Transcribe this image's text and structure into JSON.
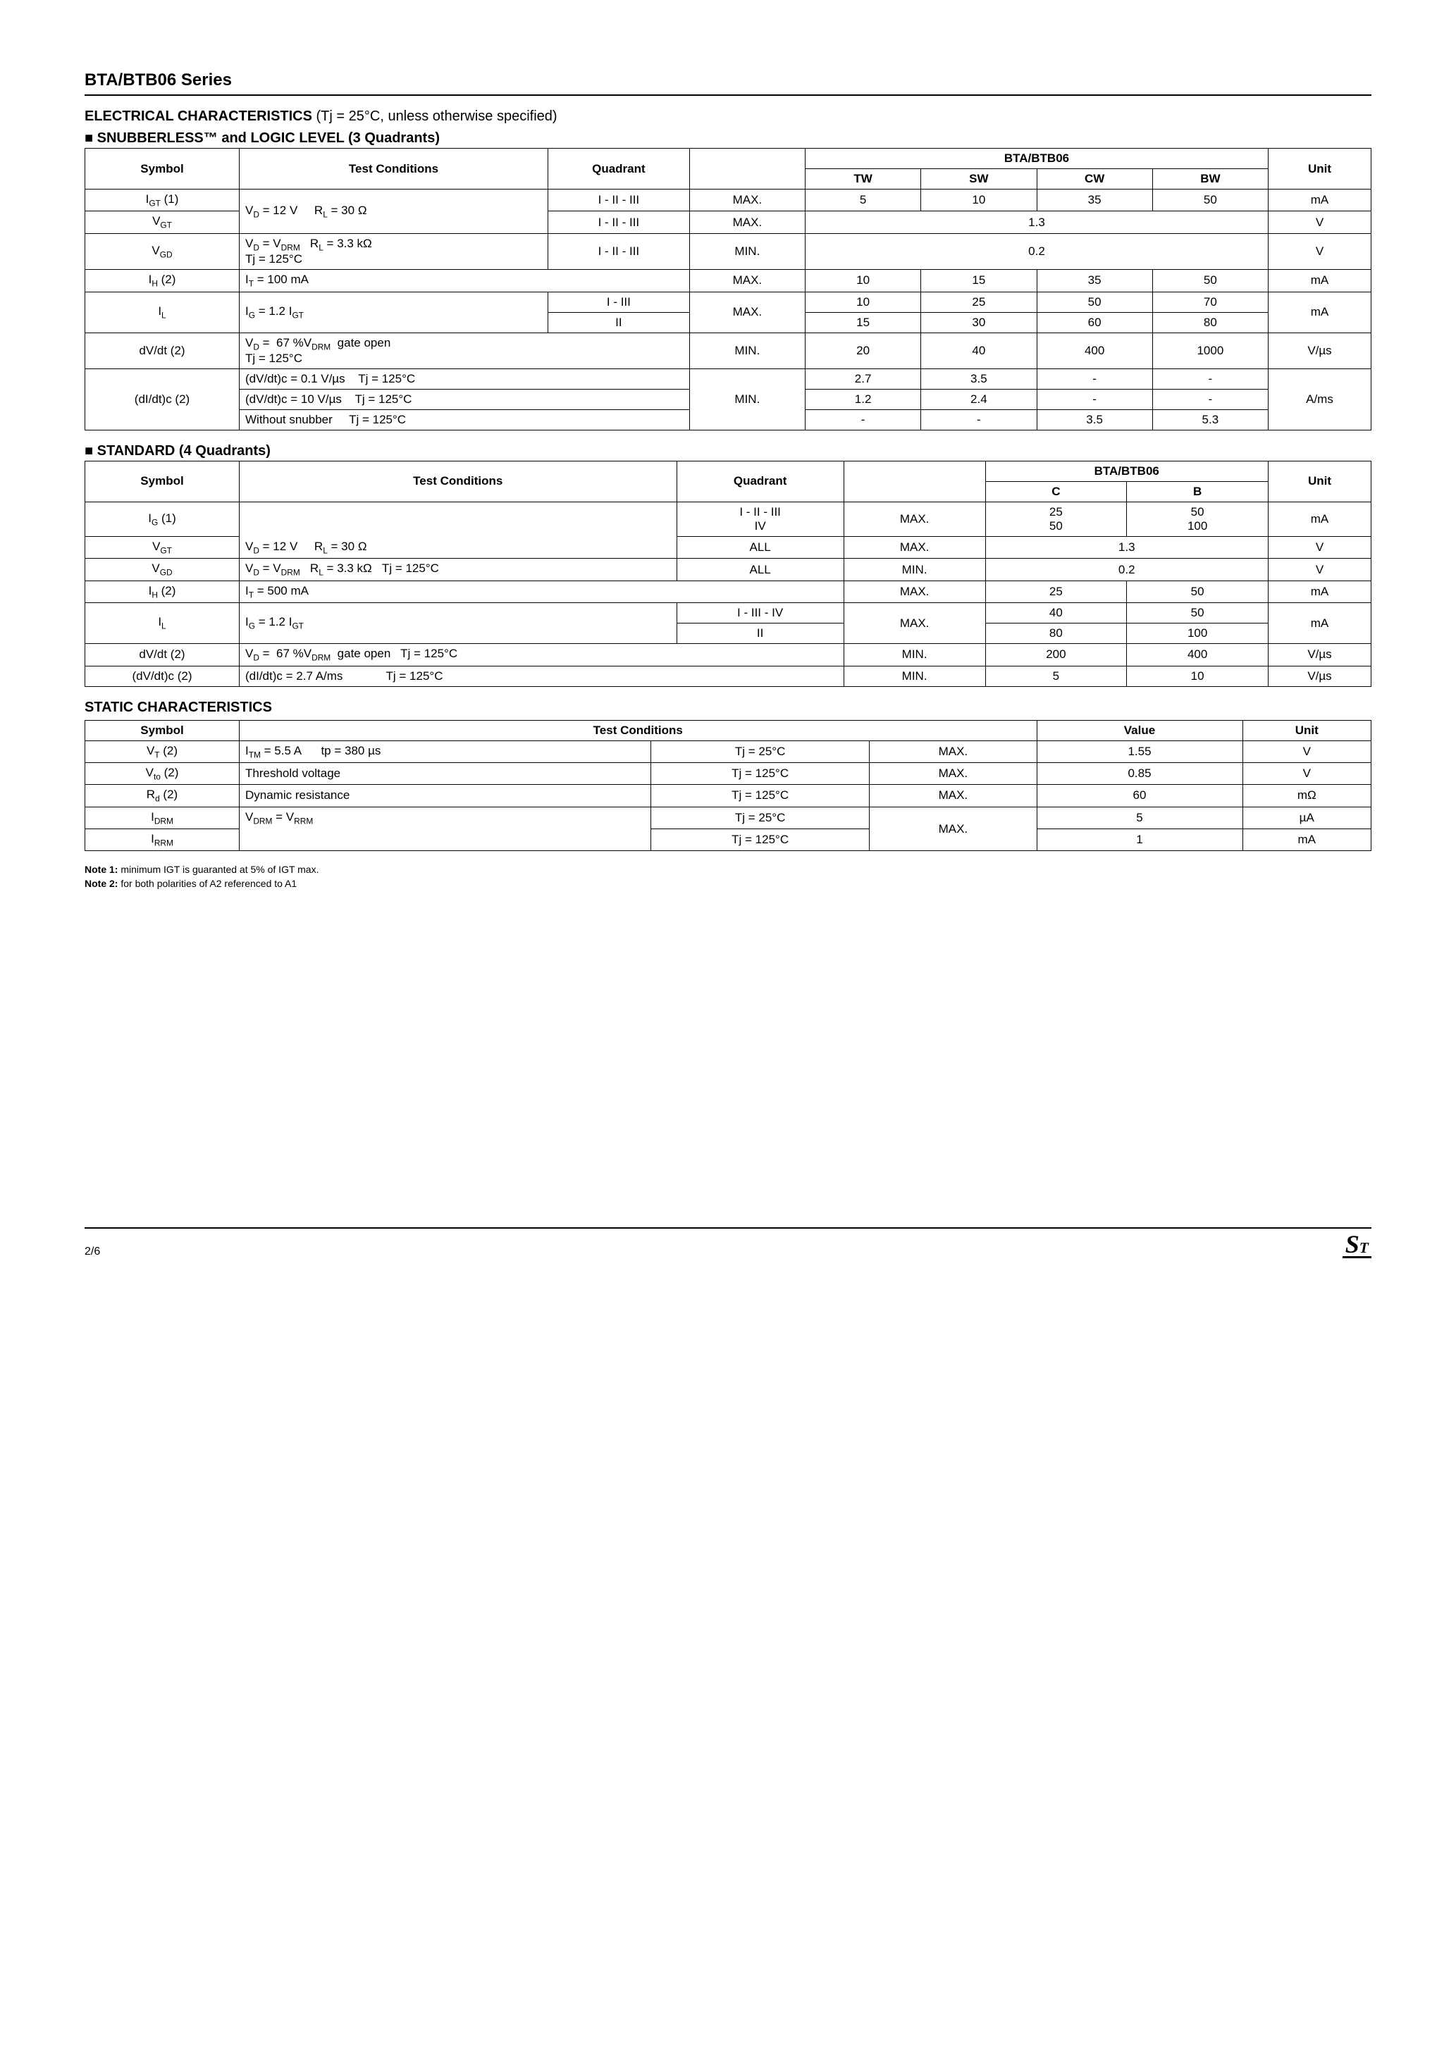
{
  "series_title": "BTA/BTB06 Series",
  "elec_title": "ELECTRICAL CHARACTERISTICS",
  "elec_cond": " (Tj = 25°C, unless otherwise specified)",
  "snub_title": "SNUBBERLESS™ and LOGIC LEVEL (3 Quadrants)",
  "std_title": "STANDARD (4 Quadrants)",
  "static_title": "STATIC CHARACTERISTICS",
  "hdr_symbol": "Symbol",
  "hdr_test": "Test Conditions",
  "hdr_quadrant": "Quadrant",
  "hdr_bta": "BTA/BTB06",
  "hdr_unit": "Unit",
  "hdr_tw": "TW",
  "hdr_sw": "SW",
  "hdr_cw": "CW",
  "hdr_bw": "BW",
  "hdr_c": "C",
  "hdr_b": "B",
  "hdr_value": "Value",
  "t1": {
    "r1_sym": "I<sub>GT</sub> (1)",
    "r1_cond": "V<sub>D</sub> = 12 V &nbsp;&nbsp;&nbsp; R<sub>L</sub> = 30 Ω",
    "r1_quad": "I - II - III",
    "r1_mm": "MAX.",
    "r1_tw": "5",
    "r1_sw": "10",
    "r1_cw": "35",
    "r1_bw": "50",
    "r1_unit": "mA",
    "r2_sym": "V<sub>GT</sub>",
    "r2_quad": "I - II - III",
    "r2_mm": "MAX.",
    "r2_val": "1.3",
    "r2_unit": "V",
    "r3_sym": "V<sub>GD</sub>",
    "r3_cond": "V<sub>D</sub> = V<sub>DRM</sub> &nbsp; R<sub>L</sub> = 3.3 kΩ<br>Tj = 125°C",
    "r3_quad": "I - II - III",
    "r3_mm": "MIN.",
    "r3_val": "0.2",
    "r3_unit": "V",
    "r4_sym": "I<sub>H</sub> (2)",
    "r4_cond": "I<sub>T</sub> = 100 mA",
    "r4_mm": "MAX.",
    "r4_tw": "10",
    "r4_sw": "15",
    "r4_cw": "35",
    "r4_bw": "50",
    "r4_unit": "mA",
    "r5_sym": "I<sub>L</sub>",
    "r5_cond": "I<sub>G</sub> = 1.2 I<sub>GT</sub>",
    "r5_quad": "I - III",
    "r5_mm": "MAX.",
    "r5_tw": "10",
    "r5_sw": "25",
    "r5_cw": "50",
    "r5_bw": "70",
    "r5_unit": "mA",
    "r6_quad": "II",
    "r6_tw": "15",
    "r6_sw": "30",
    "r6_cw": "60",
    "r6_bw": "80",
    "r7_sym": "dV/dt (2)",
    "r7_cond": "V<sub>D</sub> = &nbsp;67 %V<sub>DRM</sub>&nbsp; gate open<br>Tj = 125°C",
    "r7_mm": "MIN.",
    "r7_tw": "20",
    "r7_sw": "40",
    "r7_cw": "400",
    "r7_bw": "1000",
    "r7_unit": "V/µs",
    "r8_sym": "(dI/dt)c (2)",
    "r8_cond": "(dV/dt)c = 0.1 V/µs &nbsp;&nbsp; Tj = 125°C",
    "r8_mm": "MIN.",
    "r8_tw": "2.7",
    "r8_sw": "3.5",
    "r8_cw": "-",
    "r8_bw": "-",
    "r8_unit": "A/ms",
    "r9_cond": "(dV/dt)c = 10 V/µs &nbsp;&nbsp; Tj = 125°C",
    "r9_tw": "1.2",
    "r9_sw": "2.4",
    "r9_cw": "-",
    "r9_bw": "-",
    "r10_cond": "Without snubber &nbsp;&nbsp;&nbsp; Tj = 125°C",
    "r10_tw": "-",
    "r10_sw": "-",
    "r10_cw": "3.5",
    "r10_bw": "5.3"
  },
  "t2": {
    "r1_sym": "I<sub>G</sub> (1)",
    "r1_cond": "V<sub>D</sub> = 12 V &nbsp;&nbsp;&nbsp; R<sub>L</sub> = 30 Ω",
    "r1_quad": "I - II - III<br>IV",
    "r1_mm": "MAX.",
    "r1_c": "25<br>50",
    "r1_b": "50<br>100",
    "r1_unit": "mA",
    "r2_sym": "V<sub>GT</sub>",
    "r2_quad": "ALL",
    "r2_mm": "MAX.",
    "r2_val": "1.3",
    "r2_unit": "V",
    "r3_sym": "V<sub>GD</sub>",
    "r3_cond": "V<sub>D</sub> = V<sub>DRM</sub> &nbsp; R<sub>L</sub> = 3.3 kΩ &nbsp; Tj = 125°C",
    "r3_quad": "ALL",
    "r3_mm": "MIN.",
    "r3_val": "0.2",
    "r3_unit": "V",
    "r4_sym": "I<sub>H</sub> (2)",
    "r4_cond": "I<sub>T</sub> = 500 mA",
    "r4_mm": "MAX.",
    "r4_c": "25",
    "r4_b": "50",
    "r4_unit": "mA",
    "r5_sym": "I<sub>L</sub>",
    "r5_cond": "I<sub>G</sub> = 1.2 I<sub>GT</sub>",
    "r5_quad": "I - III - IV",
    "r5_mm": "MAX.",
    "r5_c": "40",
    "r5_b": "50",
    "r5_unit": "mA",
    "r6_quad": "II",
    "r6_c": "80",
    "r6_b": "100",
    "r7_sym": "dV/dt (2)",
    "r7_cond": "V<sub>D</sub> = &nbsp;67 %V<sub>DRM</sub>&nbsp; gate open &nbsp; Tj = 125°C",
    "r7_mm": "MIN.",
    "r7_c": "200",
    "r7_b": "400",
    "r7_unit": "V/µs",
    "r8_sym": "(dV/dt)c (2)",
    "r8_cond": "(dI/dt)c = 2.7 A/ms &nbsp;&nbsp;&nbsp;&nbsp;&nbsp;&nbsp;&nbsp;&nbsp;&nbsp;&nbsp;&nbsp; Tj = 125°C",
    "r8_mm": "MIN.",
    "r8_c": "5",
    "r8_b": "10",
    "r8_unit": "V/µs"
  },
  "t3": {
    "r1_sym": "V<sub>T</sub> (2)",
    "r1_cond": "I<sub>TM</sub> = 5.5 A &nbsp;&nbsp;&nbsp;&nbsp; tp = 380 µs",
    "r1_tj": "Tj = 25°C",
    "r1_mm": "MAX.",
    "r1_val": "1.55",
    "r1_unit": "V",
    "r2_sym": "V<sub>to</sub> (2)",
    "r2_cond": "Threshold voltage",
    "r2_tj": "Tj = 125°C",
    "r2_mm": "MAX.",
    "r2_val": "0.85",
    "r2_unit": "V",
    "r3_sym": "R<sub>d</sub> (2)",
    "r3_cond": "Dynamic resistance",
    "r3_tj": "Tj = 125°C",
    "r3_mm": "MAX.",
    "r3_val": "60",
    "r3_unit": "mΩ",
    "r4_sym": "I<sub>DRM</sub>",
    "r4_cond": "V<sub>DRM</sub> = V<sub>RRM</sub>",
    "r4_tj": "Tj = 25°C",
    "r4_mm": "MAX.",
    "r4_val": "5",
    "r4_unit": "µA",
    "r5_sym": "I<sub>RRM</sub>",
    "r5_tj": "Tj = 125°C",
    "r5_val": "1",
    "r5_unit": "mA"
  },
  "note1_label": "Note 1:",
  "note1": " minimum IGT is guaranted at 5% of IGT max.",
  "note2_label": "Note 2:",
  "note2": " for both polarities of A2 referenced to A1",
  "page": "2/6"
}
